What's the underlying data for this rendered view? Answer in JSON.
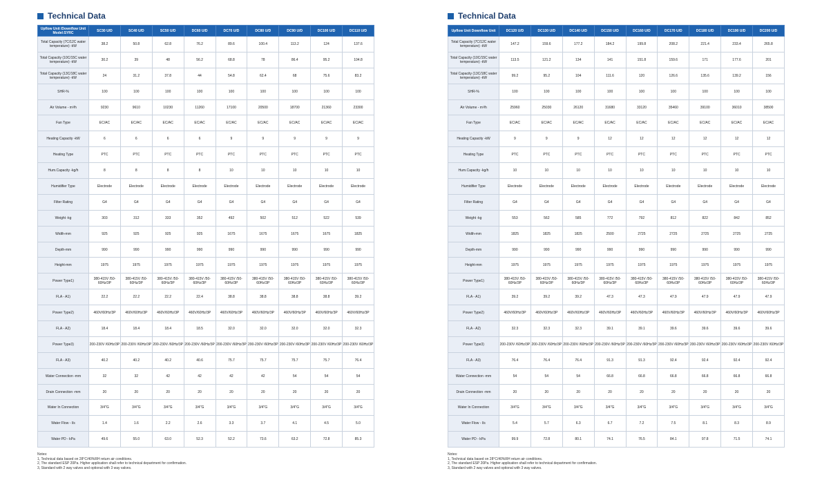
{
  "colors": {
    "header_bg": "#1f63b0",
    "label_bg": "#e9eef6",
    "title_color": "#1f3f6e",
    "accent": "#1b5fa8"
  },
  "left": {
    "title": "Technical Data",
    "header": {
      "label": "Upflow Unit /Downflow Unit Model:SYRC",
      "models": [
        "SC30 U/D",
        "SC40 U/D",
        "SC50 U/D",
        "DC60 U/D",
        "DC70 U/D",
        "DC80 U/D",
        "DC90 U/D",
        "DC100 U/D",
        "DC110 U/D"
      ]
    },
    "rows": [
      {
        "label": "Total Capacity (7C/12C water temperature) -kW",
        "values": [
          "38.2",
          "50.8",
          "62.8",
          "76.2",
          "89.6",
          "100.4",
          "113.2",
          "124",
          "137.6"
        ]
      },
      {
        "label": "Total Capacity (10C/15C water temperature) -kW",
        "values": [
          "30.2",
          "39",
          "48",
          "56.2",
          "68.8",
          "78",
          "86.4",
          "95.2",
          "104.8"
        ]
      },
      {
        "label": "Total Capacity (13C/18C water temperature) -kW",
        "values": [
          "24",
          "31.2",
          "37.8",
          "44",
          "54.8",
          "62.4",
          "68",
          "75.6",
          "83.2"
        ]
      },
      {
        "label": "SHR-%",
        "values": [
          "100",
          "100",
          "100",
          "100",
          "100",
          "100",
          "100",
          "100",
          "100"
        ]
      },
      {
        "label": "Air Volume - m³/h",
        "values": [
          "9230",
          "9610",
          "10230",
          "11260",
          "17100",
          "20500",
          "18700",
          "21360",
          "23300"
        ]
      },
      {
        "label": "Fan Type",
        "values": [
          "EC/AC",
          "EC/AC",
          "EC/AC",
          "EC/AC",
          "EC/AC",
          "EC/AC",
          "EC/AC",
          "EC/AC",
          "EC/AC"
        ]
      },
      {
        "label": "Heating Capacity -kW",
        "values": [
          "6",
          "6",
          "6",
          "6",
          "9",
          "9",
          "9",
          "9",
          "9"
        ]
      },
      {
        "label": "Heating Type",
        "values": [
          "PTC",
          "PTC",
          "PTC",
          "PTC",
          "PTC",
          "PTC",
          "PTC",
          "PTC",
          "PTC"
        ]
      },
      {
        "label": "Hum.Capacity -kg/h",
        "values": [
          "8",
          "8",
          "8",
          "8",
          "10",
          "10",
          "10",
          "10",
          "10"
        ]
      },
      {
        "label": "Humidifier Type",
        "values": [
          "Electrode",
          "Electrode",
          "Electrode",
          "Electrode",
          "Electrode",
          "Electrode",
          "Electrode",
          "Electrode",
          "Electrode"
        ]
      },
      {
        "label": "Filter Rating",
        "values": [
          "G4",
          "G4",
          "G4",
          "G4",
          "G4",
          "G4",
          "G4",
          "G4",
          "G4"
        ]
      },
      {
        "label": "Weight -kg",
        "values": [
          "303",
          "312",
          "333",
          "352",
          "492",
          "502",
          "512",
          "522",
          "539"
        ]
      },
      {
        "label": "Width-mm",
        "values": [
          "925",
          "925",
          "925",
          "925",
          "1675",
          "1675",
          "1675",
          "1675",
          "1825"
        ]
      },
      {
        "label": "Depth-mm",
        "values": [
          "990",
          "990",
          "990",
          "990",
          "990",
          "990",
          "990",
          "990",
          "990"
        ]
      },
      {
        "label": "Height-mm",
        "values": [
          "1975",
          "1975",
          "1975",
          "1975",
          "1975",
          "1975",
          "1975",
          "1975",
          "1975"
        ]
      },
      {
        "label": "Power Type1)",
        "values": [
          "380-415V /50-60Hz/3P",
          "380-415V /50-60Hz/3P",
          "380-415V /50-60Hz/3P",
          "380-415V /50-60Hz/3P",
          "380-415V /50-60Hz/3P",
          "380-415V /50-60Hz/3P",
          "380-415V /50-60Hz/3P",
          "380-415V /50-60Hz/3P",
          "380-415V /50-60Hz/3P"
        ]
      },
      {
        "label": "FLA - A1)",
        "values": [
          "22.2",
          "22.2",
          "22.2",
          "22.4",
          "38.8",
          "38.8",
          "38.8",
          "38.8",
          "39.2"
        ]
      },
      {
        "label": "Power Type2)",
        "values": [
          "460V/60Hz/3P",
          "460V/60Hz/3P",
          "460V/60Hz/3P",
          "460V/60Hz/3P",
          "460V/60Hz/3P",
          "460V/60Hz/3P",
          "460V/60Hz/3P",
          "460V/60Hz/3P",
          "460V/60Hz/3P"
        ]
      },
      {
        "label": "FLA - A2)",
        "values": [
          "18.4",
          "18.4",
          "18.4",
          "18.5",
          "32.0",
          "32.0",
          "32.0",
          "32.0",
          "32.3"
        ]
      },
      {
        "label": "Power Type3)",
        "values": [
          "200-230V /60Hz/3P",
          "200-230V /60Hz/3P",
          "200-230V /60Hz/3P",
          "200-230V /60Hz/3P",
          "200-230V /60Hz/3P",
          "200-230V /60Hz/3P",
          "200-230V /60Hz/3P",
          "200-230V /60Hz/3P",
          "200-230V /60Hz/3P"
        ]
      },
      {
        "label": "FLA - A3)",
        "values": [
          "40.2",
          "40.2",
          "40.2",
          "40.6",
          "75.7",
          "75.7",
          "75.7",
          "75.7",
          "76.4"
        ]
      },
      {
        "label": "Water Connection -mm",
        "values": [
          "32",
          "32",
          "42",
          "42",
          "42",
          "42",
          "54",
          "54",
          "54"
        ]
      },
      {
        "label": "Drain Connection -mm",
        "values": [
          "20",
          "20",
          "20",
          "20",
          "20",
          "20",
          "20",
          "20",
          "20"
        ]
      },
      {
        "label": "Water In Connection",
        "values": [
          "3/4\"G",
          "3/4\"G",
          "3/4\"G",
          "3/4\"G",
          "3/4\"G",
          "3/4\"G",
          "3/4\"G",
          "3/4\"G",
          "3/4\"G"
        ]
      },
      {
        "label": "Water Flow - l/s",
        "values": [
          "1.4",
          "1.6",
          "2.2",
          "2.6",
          "3.3",
          "3.7",
          "4.1",
          "4.5",
          "5.0"
        ]
      },
      {
        "label": "Water PD - kPa",
        "values": [
          "49.6",
          "55.0",
          "63.0",
          "52.3",
          "52.2",
          "73.6",
          "63.2",
          "72.8",
          "85.3"
        ]
      }
    ],
    "notes": [
      "Notes:",
      "1, Technical data based on 28°C/40%RH return air conditions.",
      "2, The standard ESP 20Pa. Higher application shall refer to technical department for confirmation.",
      "3, Standard with 2 way valves and optional with 3 way valves."
    ]
  },
  "right": {
    "title": "Technical Data",
    "header": {
      "label": "Upflow Unit Downflow Unit",
      "models": [
        "DC120 U/D",
        "DC130 U/D",
        "DC140 U/D",
        "DC150 U/D",
        "DC160 U/D",
        "DC170 U/D",
        "DC180 U/D",
        "DC190 U/D",
        "DC200 U/D"
      ]
    },
    "rows": [
      {
        "label": "Total Capacity (7C/12C water temperature) -kW",
        "values": [
          "147.2",
          "159.6",
          "177.2",
          "184.2",
          "199.8",
          "208.2",
          "221.4",
          "233.4",
          "265.8"
        ]
      },
      {
        "label": "Total Capacity (10C/15C water temperature) -kW",
        "values": [
          "113.5",
          "121.2",
          "134",
          "141",
          "151.8",
          "159.6",
          "171",
          "177.6",
          "201"
        ]
      },
      {
        "label": "Total Capacity (13C/18C water temperature) -kW",
        "values": [
          "99.2",
          "95.2",
          "104",
          "111.6",
          "120",
          "126.6",
          "135.6",
          "139.2",
          "156"
        ]
      },
      {
        "label": "SHR-%",
        "values": [
          "100",
          "100",
          "100",
          "100",
          "100",
          "100",
          "100",
          "100",
          "100"
        ]
      },
      {
        "label": "Air Volume - m³/h",
        "values": [
          "25960",
          "25030",
          "26120",
          "31680",
          "33120",
          "35460",
          "39100",
          "36010",
          "38500"
        ]
      },
      {
        "label": "Fan Type",
        "values": [
          "EC/AC",
          "EC/AC",
          "EC/AC",
          "EC/AC",
          "EC/AC",
          "EC/AC",
          "EC/AC",
          "EC/AC",
          "EC/AC"
        ]
      },
      {
        "label": "Heating Capacity -kW",
        "values": [
          "9",
          "9",
          "9",
          "12",
          "12",
          "12",
          "12",
          "12",
          "12"
        ]
      },
      {
        "label": "Heating Type",
        "values": [
          "PTC",
          "PTC",
          "PTC",
          "PTC",
          "PTC",
          "PTC",
          "PTC",
          "PTC",
          "PTC"
        ]
      },
      {
        "label": "Hum.Capacity -kg/h",
        "values": [
          "10",
          "10",
          "10",
          "10",
          "10",
          "10",
          "10",
          "10",
          "10"
        ]
      },
      {
        "label": "Humidifier Type",
        "values": [
          "Electrode",
          "Electrode",
          "Electrode",
          "Electrode",
          "Electrode",
          "Electrode",
          "Electrode",
          "Electrode",
          "Electrode"
        ]
      },
      {
        "label": "Filter Rating",
        "values": [
          "G4",
          "G4",
          "G4",
          "G4",
          "G4",
          "G4",
          "G4",
          "G4",
          "G4"
        ]
      },
      {
        "label": "Weight -kg",
        "values": [
          "553",
          "562",
          "585",
          "772",
          "792",
          "812",
          "822",
          "842",
          "852"
        ]
      },
      {
        "label": "Width-mm",
        "values": [
          "1825",
          "1825",
          "1825",
          "2500",
          "2725",
          "2725",
          "2725",
          "2725",
          "2725"
        ]
      },
      {
        "label": "Depth-mm",
        "values": [
          "990",
          "990",
          "990",
          "990",
          "990",
          "990",
          "990",
          "990",
          "990"
        ]
      },
      {
        "label": "Height-mm",
        "values": [
          "1975",
          "1975",
          "1975",
          "1975",
          "1975",
          "1975",
          "1975",
          "1975",
          "1975"
        ]
      },
      {
        "label": "Power Type1)",
        "values": [
          "380-415V /50-60Hz/3P",
          "380-415V /50-60Hz/3P",
          "380-415V /50-60Hz/3P",
          "380-415V /50-60Hz/3P",
          "380-415V /50-60Hz/3P",
          "380-415V /50-60Hz/3P",
          "380-415V /50-60Hz/3P",
          "380-415V /50-60Hz/3P",
          "380-415V /50-60Hz/3P"
        ]
      },
      {
        "label": "FLA - A1)",
        "values": [
          "39.2",
          "39.2",
          "39.2",
          "47.3",
          "47.3",
          "47.9",
          "47.9",
          "47.9",
          "47.9"
        ]
      },
      {
        "label": "Power Type2)",
        "values": [
          "460V/60Hz/3P",
          "460V/60Hz/3P",
          "460V/60Hz/3P",
          "460V/60Hz/3P",
          "460V/60Hz/3P",
          "460V/60Hz/3P",
          "460V/60Hz/3P",
          "460V/60Hz/3P",
          "460V/60Hz/3P"
        ]
      },
      {
        "label": "FLA - A2)",
        "values": [
          "32.3",
          "32.3",
          "32.3",
          "39.1",
          "39.1",
          "39.6",
          "39.6",
          "39.6",
          "39.6"
        ]
      },
      {
        "label": "Power Type3)",
        "values": [
          "200-230V /60Hz/3P",
          "200-230V /60Hz/3P",
          "200-230V /60Hz/3P",
          "200-230V /60Hz/3P",
          "200-230V /60Hz/3P",
          "200-230V /60Hz/3P",
          "200-230V /60Hz/3P",
          "200-230V /60Hz/3P",
          "200-230V /60Hz/3P"
        ]
      },
      {
        "label": "FLA - A3)",
        "values": [
          "76.4",
          "76.4",
          "76.4",
          "91.3",
          "91.3",
          "92.4",
          "92.4",
          "92.4",
          "92.4"
        ]
      },
      {
        "label": "Water Connection -mm",
        "values": [
          "54",
          "54",
          "54",
          "66.8",
          "66.8",
          "66.8",
          "66.8",
          "66.8",
          "66.8"
        ]
      },
      {
        "label": "Drain Connection -mm",
        "values": [
          "20",
          "20",
          "20",
          "20",
          "20",
          "20",
          "20",
          "20",
          "20"
        ]
      },
      {
        "label": "Water In Connection",
        "values": [
          "3/4\"G",
          "3/4\"G",
          "3/4\"G",
          "3/4\"G",
          "3/4\"G",
          "3/4\"G",
          "3/4\"G",
          "3/4\"G",
          "3/4\"G"
        ]
      },
      {
        "label": "Water Flow - l/s",
        "values": [
          "5.4",
          "5.7",
          "6.3",
          "6.7",
          "7.2",
          "7.5",
          "8.1",
          "8.3",
          "8.9"
        ]
      },
      {
        "label": "Water PD - kPa",
        "values": [
          "99.9",
          "72.8",
          "80.1",
          "74.1",
          "76.5",
          "84.1",
          "97.8",
          "71.5",
          "74.1"
        ]
      }
    ],
    "notes": [
      "Notes:",
      "1, Technical data based on 28°C/40%RH return air conditions.",
      "2, The standard ESP 20Pa. Higher application shall refer to technical department for confirmation.",
      "3, Standard with 2 way valves and optional with 3 way valves."
    ]
  }
}
